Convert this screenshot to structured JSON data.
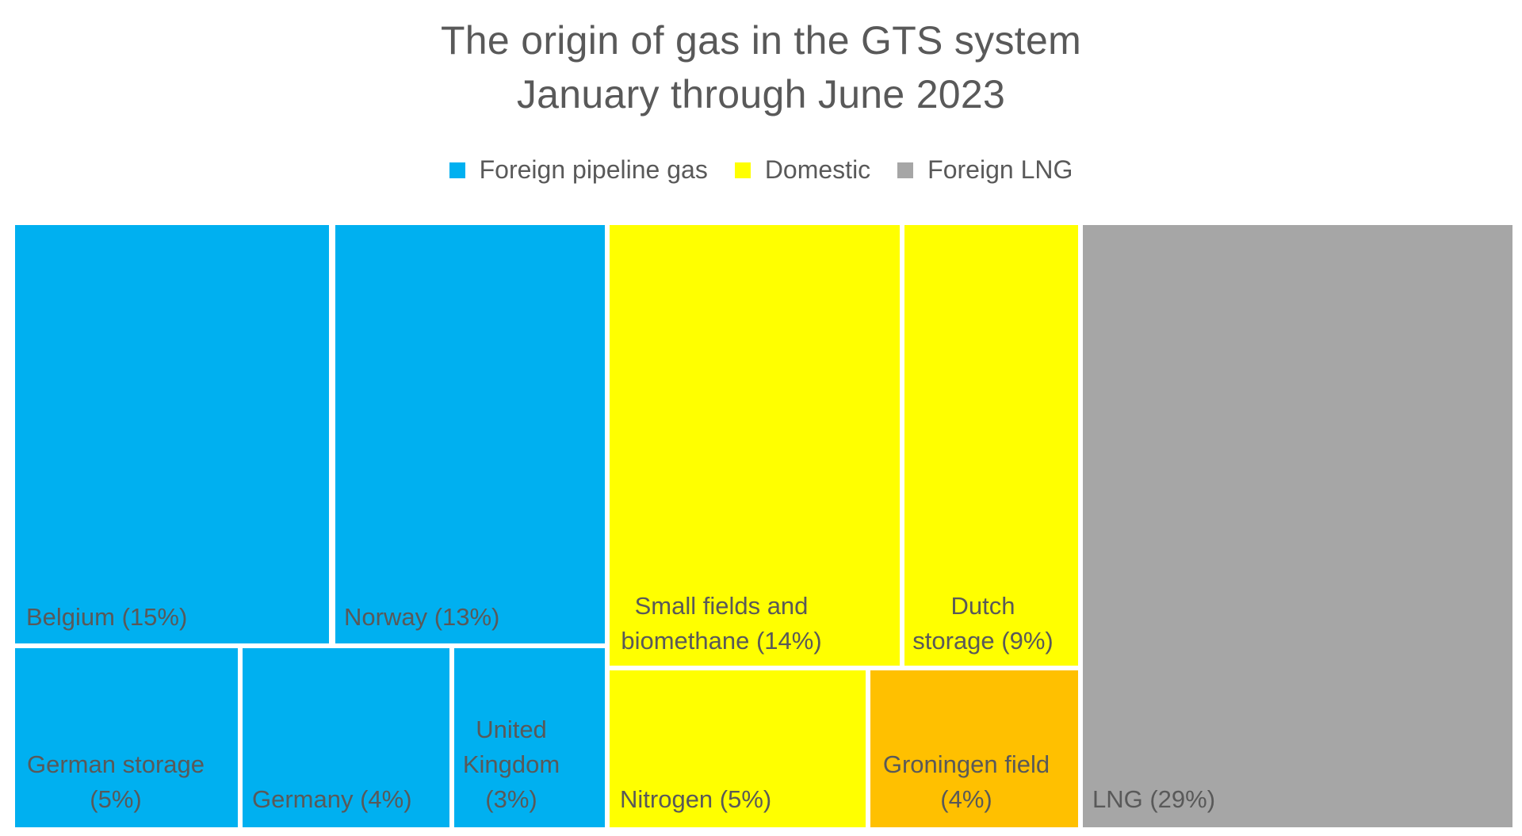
{
  "chart_data": {
    "type": "treemap",
    "title": [
      "The origin of gas in the GTS system",
      "January through June 2023"
    ],
    "legend": [
      {
        "name": "Foreign pipeline gas",
        "color": "#00B0F0"
      },
      {
        "name": "Domestic",
        "color": "#FFFF00"
      },
      {
        "name": "Foreign LNG",
        "color": "#A6A6A6"
      }
    ],
    "items": [
      {
        "group": "Foreign pipeline gas",
        "label": [
          "Belgium (15%)"
        ],
        "value": 15,
        "color": "#00B0F0"
      },
      {
        "group": "Foreign pipeline gas",
        "label": [
          "Norway (13%)"
        ],
        "value": 13,
        "color": "#00B0F0"
      },
      {
        "group": "Foreign pipeline gas",
        "label": [
          "German storage",
          "(5%)"
        ],
        "value": 5,
        "color": "#00B0F0"
      },
      {
        "group": "Foreign pipeline gas",
        "label": [
          "Germany (4%)"
        ],
        "value": 4,
        "color": "#00B0F0"
      },
      {
        "group": "Foreign pipeline gas",
        "label": [
          "United",
          "Kingdom",
          "(3%)"
        ],
        "value": 3,
        "color": "#00B0F0"
      },
      {
        "group": "Domestic",
        "label": [
          "Small fields and",
          "biomethane (14%)"
        ],
        "value": 14,
        "color": "#FFFF00"
      },
      {
        "group": "Domestic",
        "label": [
          "Dutch",
          "storage (9%)"
        ],
        "value": 9,
        "color": "#FFFF00"
      },
      {
        "group": "Domestic",
        "label": [
          "Nitrogen (5%)"
        ],
        "value": 5,
        "color": "#FFFF00"
      },
      {
        "group": "Domestic",
        "label": [
          "Groningen field",
          "(4%)"
        ],
        "value": 4,
        "color": "#FFC000"
      },
      {
        "group": "Foreign LNG",
        "label": [
          "LNG (29%)"
        ],
        "value": 29,
        "color": "#A6A6A6"
      }
    ]
  }
}
